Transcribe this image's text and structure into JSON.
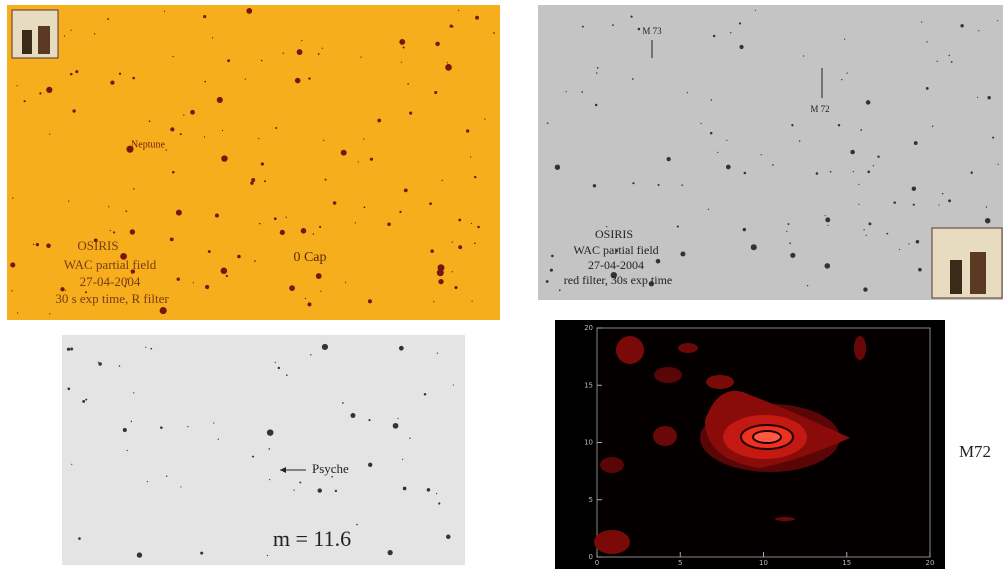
{
  "neptune_panel": {
    "target_label": "Neptune",
    "star_label": "0 Cap",
    "caption": [
      "OSIRIS",
      "WAC partial field",
      "27-04-2004",
      "30 s exp time, R filter"
    ]
  },
  "messier_panel": {
    "labels": [
      "M 73",
      "M 72"
    ],
    "caption": [
      "OSIRIS",
      "WAC partial field",
      "27-04-2004",
      "red filter, 30s exp time"
    ]
  },
  "psyche_panel": {
    "target_label": "Psyche",
    "magnitude": "m = 11.6"
  },
  "contour_panel": {
    "label": "M72",
    "xlim": [
      0,
      20
    ],
    "ylim": [
      0,
      20
    ],
    "xticks": [
      0,
      5,
      10,
      15,
      20
    ],
    "yticks": [
      0,
      5,
      10,
      15,
      20
    ]
  }
}
